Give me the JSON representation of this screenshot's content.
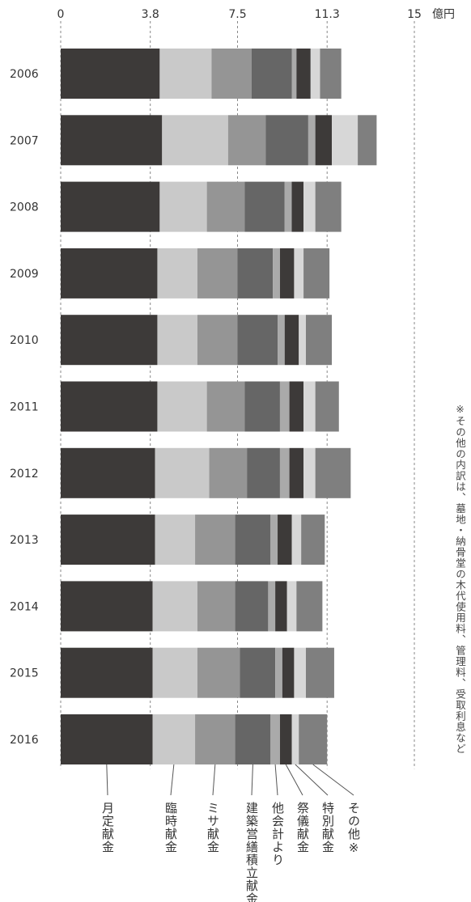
{
  "chart_data": {
    "type": "bar",
    "orientation": "horizontal",
    "stacked": true,
    "unit": "億円",
    "xlim": [
      0,
      15
    ],
    "xticks": [
      "0",
      "3.8",
      "7.5",
      "11.3",
      "15"
    ],
    "grid": "dashed vertical",
    "categories": [
      "2006",
      "2007",
      "2008",
      "2009",
      "2010",
      "2011",
      "2012",
      "2013",
      "2014",
      "2015",
      "2016"
    ],
    "series": [
      {
        "name": "月定献金",
        "color": "#3d3a39",
        "values": [
          4.2,
          4.3,
          4.2,
          4.1,
          4.1,
          4.1,
          4.0,
          4.0,
          3.9,
          3.9,
          3.9
        ]
      },
      {
        "name": "臨時献金",
        "color": "#c9c9c9",
        "values": [
          2.2,
          2.8,
          2.0,
          1.7,
          1.7,
          2.1,
          2.3,
          1.7,
          1.9,
          1.9,
          1.8
        ]
      },
      {
        "name": "ミサ献金",
        "color": "#959595",
        "values": [
          1.7,
          1.6,
          1.6,
          1.7,
          1.7,
          1.6,
          1.6,
          1.7,
          1.6,
          1.8,
          1.7
        ]
      },
      {
        "name": "建築営繕積立献金",
        "color": "#666666",
        "values": [
          1.7,
          1.8,
          1.7,
          1.5,
          1.7,
          1.5,
          1.4,
          1.5,
          1.4,
          1.5,
          1.5
        ]
      },
      {
        "name": "他会計より",
        "color": "#aaaaaa",
        "values": [
          0.2,
          0.3,
          0.3,
          0.3,
          0.3,
          0.4,
          0.4,
          0.3,
          0.3,
          0.3,
          0.4
        ]
      },
      {
        "name": "祭儀献金",
        "color": "#3d3a39",
        "values": [
          0.6,
          0.7,
          0.5,
          0.6,
          0.6,
          0.6,
          0.6,
          0.6,
          0.5,
          0.5,
          0.5
        ]
      },
      {
        "name": "特別献金",
        "color": "#d7d7d7",
        "values": [
          0.4,
          1.1,
          0.5,
          0.4,
          0.3,
          0.5,
          0.5,
          0.4,
          0.4,
          0.5,
          0.3
        ]
      },
      {
        "name": "その他※",
        "color": "#7f7f7f",
        "values": [
          0.9,
          0.8,
          1.1,
          1.1,
          1.1,
          1.0,
          1.5,
          1.0,
          1.1,
          1.2,
          1.2
        ]
      }
    ],
    "note": "※その他の内訳は、墓地・納骨堂の木代使用料、管理料、受取利息など"
  }
}
